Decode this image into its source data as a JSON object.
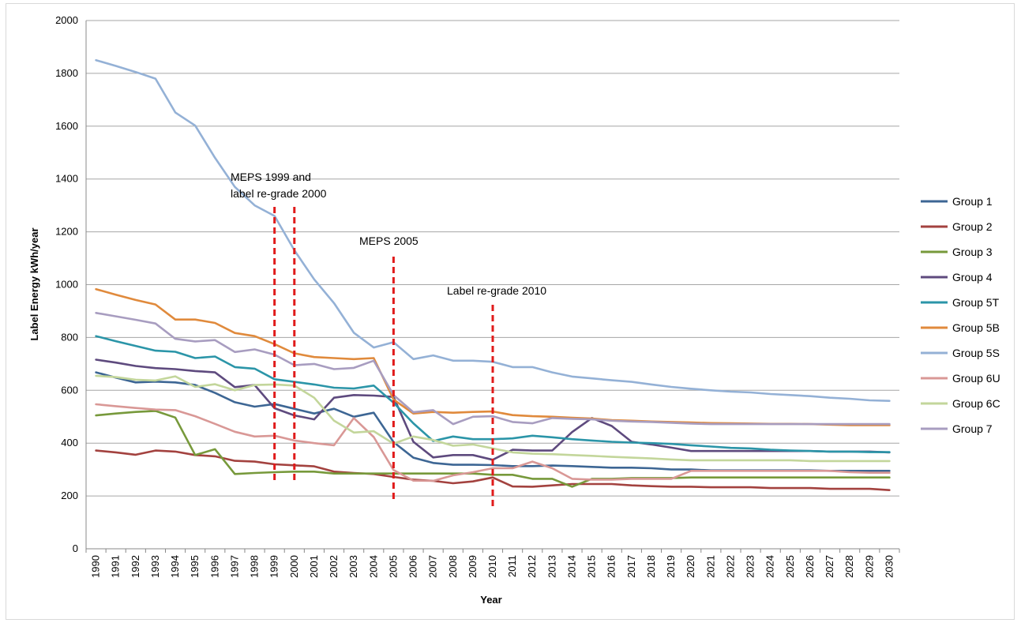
{
  "chart_data": {
    "type": "line",
    "title": "",
    "xlabel": "Year",
    "ylabel": "Label Energy kWh/year",
    "ylim": [
      0,
      2000
    ],
    "yticks": [
      0,
      200,
      400,
      600,
      800,
      1000,
      1200,
      1400,
      1600,
      1800,
      2000
    ],
    "grid": "horizontal",
    "legend": "right",
    "x": [
      1990,
      1991,
      1992,
      1993,
      1994,
      1995,
      1996,
      1997,
      1998,
      1999,
      2000,
      2001,
      2002,
      2003,
      2004,
      2005,
      2006,
      2007,
      2008,
      2009,
      2010,
      2011,
      2012,
      2013,
      2014,
      2015,
      2016,
      2017,
      2018,
      2019,
      2020,
      2021,
      2022,
      2023,
      2024,
      2025,
      2026,
      2027,
      2028,
      2029,
      2030
    ],
    "xtick_labels": [
      "1990",
      "1991",
      "1992",
      "1993",
      "1994",
      "1995",
      "1996",
      "1997",
      "1998",
      "1999",
      "2000",
      "2001",
      "2002",
      "2003",
      "2004",
      "2005",
      "2006",
      "2007",
      "2008",
      "2009",
      "2010",
      "2011",
      "2012",
      "2013",
      "2014",
      "2015",
      "2016",
      "2017",
      "2018",
      "2019",
      "2020",
      "2021",
      "2022",
      "2023",
      "2024",
      "2025",
      "2026",
      "2027",
      "2028",
      "2029",
      "2030"
    ],
    "series": [
      {
        "name": "Group 1",
        "color": "#3d6694",
        "values": [
          668,
          648,
          630,
          633,
          630,
          620,
          590,
          555,
          538,
          548,
          530,
          512,
          530,
          500,
          515,
          404,
          345,
          325,
          318,
          318,
          317,
          313,
          313,
          315,
          313,
          310,
          307,
          307,
          305,
          300,
          300,
          297,
          297,
          297,
          297,
          297,
          297,
          295,
          295,
          295,
          295
        ]
      },
      {
        "name": "Group 2",
        "color": "#a3423f",
        "values": [
          372,
          365,
          356,
          372,
          368,
          355,
          350,
          333,
          330,
          320,
          316,
          312,
          292,
          287,
          283,
          272,
          262,
          257,
          248,
          255,
          270,
          236,
          235,
          240,
          245,
          245,
          245,
          240,
          237,
          235,
          235,
          233,
          233,
          233,
          230,
          230,
          230,
          227,
          227,
          227,
          222
        ]
      },
      {
        "name": "Group 3",
        "color": "#77993b",
        "values": [
          505,
          512,
          518,
          522,
          497,
          355,
          377,
          283,
          287,
          290,
          292,
          292,
          285,
          285,
          285,
          285,
          285,
          285,
          285,
          285,
          280,
          280,
          265,
          265,
          235,
          265,
          265,
          268,
          268,
          268,
          270,
          270,
          270,
          270,
          270,
          270,
          270,
          270,
          270,
          270,
          270
        ]
      },
      {
        "name": "Group 4",
        "color": "#5e4a7e",
        "values": [
          716,
          705,
          692,
          684,
          680,
          673,
          668,
          612,
          620,
          532,
          505,
          490,
          572,
          582,
          580,
          575,
          405,
          346,
          355,
          355,
          337,
          375,
          372,
          372,
          442,
          495,
          465,
          405,
          395,
          383,
          370,
          370,
          370,
          370,
          370,
          370,
          370,
          368,
          368,
          368,
          365
        ]
      },
      {
        "name": "Group 5T",
        "color": "#2b95a8",
        "values": [
          805,
          786,
          768,
          750,
          746,
          722,
          728,
          688,
          682,
          642,
          632,
          622,
          610,
          607,
          618,
          553,
          475,
          408,
          425,
          415,
          415,
          418,
          428,
          422,
          415,
          410,
          405,
          402,
          400,
          397,
          392,
          387,
          382,
          380,
          375,
          372,
          370,
          368,
          368,
          366,
          366
        ]
      },
      {
        "name": "Group 5B",
        "color": "#e08a3c",
        "values": [
          983,
          962,
          942,
          925,
          868,
          868,
          855,
          817,
          805,
          775,
          740,
          726,
          722,
          718,
          722,
          565,
          512,
          518,
          515,
          518,
          520,
          506,
          502,
          500,
          496,
          493,
          487,
          485,
          482,
          480,
          478,
          476,
          475,
          474,
          473,
          473,
          472,
          470,
          468,
          468,
          468
        ]
      },
      {
        "name": "Group 5S",
        "color": "#94b1d6",
        "values": [
          1850,
          1828,
          1805,
          1780,
          1652,
          1602,
          1480,
          1370,
          1300,
          1260,
          1130,
          1020,
          930,
          818,
          762,
          782,
          718,
          732,
          712,
          712,
          708,
          688,
          688,
          668,
          652,
          645,
          638,
          632,
          622,
          613,
          606,
          600,
          595,
          592,
          586,
          582,
          578,
          572,
          568,
          562,
          560
        ]
      },
      {
        "name": "Group 6U",
        "color": "#d99896",
        "values": [
          547,
          540,
          533,
          527,
          525,
          502,
          473,
          443,
          425,
          428,
          410,
          400,
          392,
          495,
          423,
          298,
          258,
          257,
          278,
          290,
          305,
          305,
          330,
          305,
          265,
          262,
          262,
          265,
          265,
          265,
          295,
          295,
          295,
          295,
          295,
          295,
          295,
          295,
          290,
          288,
          288
        ]
      },
      {
        "name": "Group 6C",
        "color": "#c3d69b",
        "values": [
          655,
          650,
          640,
          637,
          653,
          613,
          623,
          600,
          620,
          622,
          618,
          572,
          485,
          440,
          445,
          398,
          425,
          412,
          390,
          395,
          380,
          365,
          360,
          358,
          355,
          352,
          348,
          345,
          342,
          338,
          335,
          335,
          335,
          335,
          335,
          335,
          332,
          332,
          332,
          332,
          332
        ]
      },
      {
        "name": "Group 7",
        "color": "#a89dc0",
        "values": [
          893,
          880,
          867,
          853,
          795,
          785,
          790,
          745,
          755,
          735,
          695,
          700,
          680,
          685,
          712,
          582,
          517,
          525,
          472,
          500,
          502,
          480,
          475,
          495,
          492,
          490,
          485,
          482,
          480,
          477,
          474,
          472,
          472,
          472,
          472,
          472,
          472,
          472,
          472,
          472,
          472
        ]
      }
    ],
    "annotations": [
      {
        "text_lines": [
          "MEPS 1999 and",
          "label re-grade 2000"
        ],
        "x": [
          1999,
          2000
        ]
      },
      {
        "text_lines": [
          "MEPS 2005"
        ],
        "x": [
          2005
        ]
      },
      {
        "text_lines": [
          "Label re-grade 2010"
        ],
        "x": [
          2010
        ]
      }
    ]
  }
}
